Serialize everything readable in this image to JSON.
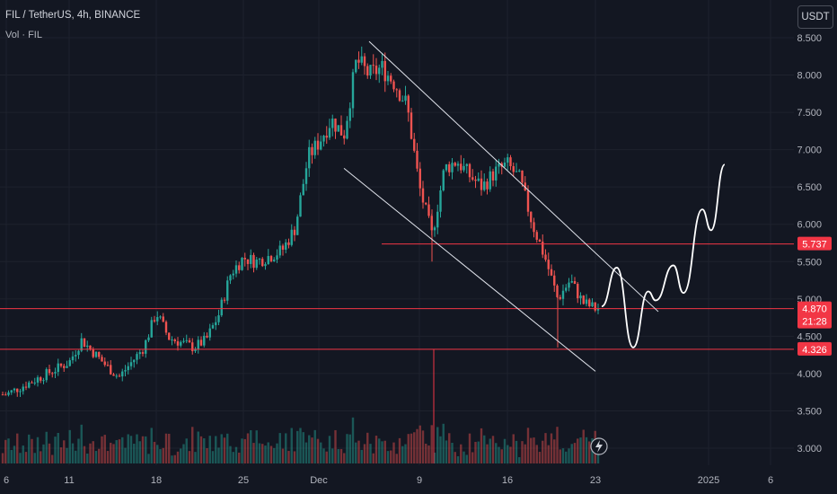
{
  "header": {
    "title": "FIL / TetherUS, 4h, BINANCE",
    "volume_label": "Vol · FIL"
  },
  "currency_button": "USDT",
  "colors": {
    "background": "#131722",
    "up": "#26a69a",
    "down": "#ef5350",
    "level_line": "#f23645",
    "channel": "#e0e3eb",
    "projection": "#ffffff",
    "text": "#b2b5be"
  },
  "chart_data": {
    "type": "candlestick",
    "symbol": "FIL / TetherUS",
    "timeframe": "4h",
    "exchange": "BINANCE",
    "y_axis": {
      "ticks": [
        "3.000",
        "3.500",
        "4.000",
        "4.500",
        "5.000",
        "5.500",
        "6.000",
        "6.500",
        "7.000",
        "7.500",
        "8.000",
        "8.500"
      ],
      "range": [
        2.85,
        8.62
      ]
    },
    "x_axis": {
      "ticks": [
        "6",
        "11",
        "18",
        "25",
        "Dec",
        "9",
        "16",
        "23",
        "2025",
        "6"
      ]
    },
    "price_path": [
      {
        "date": "Nov 6",
        "price": 3.72
      },
      {
        "date": "Nov 11",
        "price": 4.15
      },
      {
        "date": "Nov 12",
        "price": 4.45
      },
      {
        "date": "Nov 14",
        "price": 4.1
      },
      {
        "date": "Nov 15",
        "price": 3.95
      },
      {
        "date": "Nov 17",
        "price": 4.35
      },
      {
        "date": "Nov 18",
        "price": 4.82
      },
      {
        "date": "Nov 19",
        "price": 4.48
      },
      {
        "date": "Nov 21",
        "price": 4.35
      },
      {
        "date": "Nov 22",
        "price": 4.45
      },
      {
        "date": "Nov 23",
        "price": 4.78
      },
      {
        "date": "Nov 24",
        "price": 5.35
      },
      {
        "date": "Nov 25",
        "price": 5.55
      },
      {
        "date": "Nov 26",
        "price": 5.5
      },
      {
        "date": "Nov 28",
        "price": 5.65
      },
      {
        "date": "Nov 29",
        "price": 5.95
      },
      {
        "date": "Nov 30",
        "price": 6.9
      },
      {
        "date": "Dec 1",
        "price": 7.1
      },
      {
        "date": "Dec 2",
        "price": 7.4
      },
      {
        "date": "Dec 3",
        "price": 7.2
      },
      {
        "date": "Dec 4",
        "price": 8.2
      },
      {
        "date": "Dec 5",
        "price": 8.0
      },
      {
        "date": "Dec 6",
        "price": 8.1
      },
      {
        "date": "Dec 7",
        "price": 7.9
      },
      {
        "date": "Dec 8",
        "price": 7.6
      },
      {
        "date": "Dec 9",
        "price": 6.5
      },
      {
        "date": "Dec 10",
        "price": 5.85
      },
      {
        "date": "Dec 11",
        "price": 6.75
      },
      {
        "date": "Dec 12",
        "price": 6.85
      },
      {
        "date": "Dec 13",
        "price": 6.65
      },
      {
        "date": "Dec 14",
        "price": 6.5
      },
      {
        "date": "Dec 15",
        "price": 6.7
      },
      {
        "date": "Dec 16",
        "price": 6.8
      },
      {
        "date": "Dec 17",
        "price": 6.6
      },
      {
        "date": "Dec 18",
        "price": 6.0
      },
      {
        "date": "Dec 19",
        "price": 5.55
      },
      {
        "date": "Dec 20",
        "price": 5.0
      },
      {
        "date": "Dec 21",
        "price": 5.25
      },
      {
        "date": "Dec 22",
        "price": 4.95
      },
      {
        "date": "Dec 23",
        "price": 4.87
      }
    ],
    "horizontal_levels": [
      {
        "value": 5.737,
        "label": "5.737"
      },
      {
        "value": 4.87,
        "label": "4.870"
      },
      {
        "value": 4.326,
        "label": "4.326"
      }
    ],
    "last_price": {
      "value": 4.87,
      "countdown": "21:28"
    },
    "channel": {
      "upper": [
        {
          "date": "Dec 5",
          "price": 8.45
        },
        {
          "date": "Dec 28",
          "price": 4.83
        }
      ],
      "lower": [
        {
          "date": "Dec 3",
          "price": 6.75
        },
        {
          "date": "Dec 23",
          "price": 4.03
        }
      ]
    },
    "projection": [
      {
        "date": "Dec 23.5",
        "price": 4.9
      },
      {
        "date": "Dec 24.7",
        "price": 5.42
      },
      {
        "date": "Dec 26",
        "price": 4.35
      },
      {
        "date": "Dec 27.2",
        "price": 5.1
      },
      {
        "date": "Dec 27.8",
        "price": 4.98
      },
      {
        "date": "Dec 29.2",
        "price": 5.45
      },
      {
        "date": "Dec 30",
        "price": 5.08
      },
      {
        "date": "Dec 31.5",
        "price": 6.2
      },
      {
        "date": "Jan 1.2",
        "price": 5.92
      },
      {
        "date": "Jan 2.3",
        "price": 6.8
      }
    ]
  }
}
